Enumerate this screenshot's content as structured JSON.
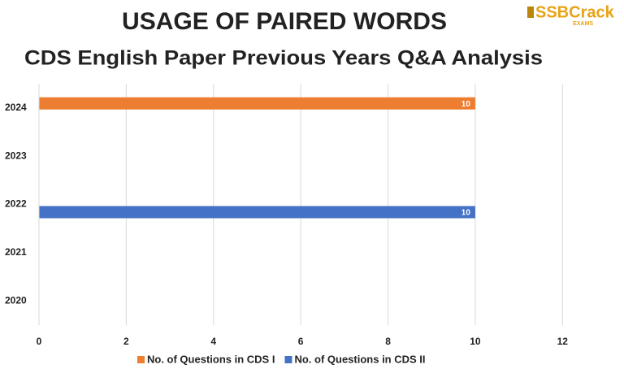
{
  "chart_data": {
    "type": "bar",
    "orientation": "horizontal",
    "title": "USAGE OF PAIRED WORDS",
    "subtitle": "CDS English Paper Previous Years Q&A Analysis",
    "categories": [
      "2024",
      "2023",
      "2022",
      "2021",
      "2020"
    ],
    "series": [
      {
        "name": "No. of Questions in CDS I",
        "color": "#ed7d31",
        "values": [
          10,
          null,
          null,
          null,
          null
        ]
      },
      {
        "name": "No. of Questions in CDS II",
        "color": "#4472c4",
        "values": [
          null,
          null,
          10,
          null,
          null
        ]
      }
    ],
    "xlim": [
      0,
      13
    ],
    "xticks": [
      0,
      2,
      4,
      6,
      8,
      10,
      12
    ],
    "grid": true,
    "legend": "bottom"
  },
  "logo": {
    "name": "SSBCrack",
    "tagline": "EXAMS"
  }
}
